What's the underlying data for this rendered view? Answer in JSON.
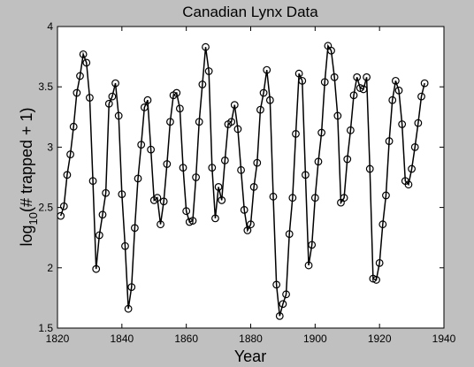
{
  "chart_data": {
    "type": "line",
    "title": "Canadian Lynx Data",
    "xlabel": "Year",
    "ylabel": {
      "prefix": "log",
      "subscript": "10",
      "suffix": "(# trapped + 1)"
    },
    "xlim": [
      1820,
      1940
    ],
    "ylim": [
      1.5,
      4
    ],
    "xticks": [
      "1820",
      "1840",
      "1860",
      "1880",
      "1900",
      "1920",
      "1940"
    ],
    "yticks": [
      "1.5",
      "2",
      "2.5",
      "3",
      "3.5",
      "4"
    ],
    "grid": false,
    "legend": "none",
    "marker": "circle",
    "colors": {
      "line": "#000000",
      "background": "#c0c0c0",
      "plot_area": "#ffffff"
    },
    "series": [
      {
        "x": [
          1821,
          1822,
          1823,
          1824,
          1825,
          1826,
          1827,
          1828,
          1829,
          1830,
          1831,
          1832,
          1833,
          1834,
          1835,
          1836,
          1837,
          1838,
          1839,
          1840,
          1841,
          1842,
          1843,
          1844,
          1845,
          1846,
          1847,
          1848,
          1849,
          1850,
          1851,
          1852,
          1853,
          1854,
          1855,
          1856,
          1857,
          1858,
          1859,
          1860,
          1861,
          1862,
          1863,
          1864,
          1865,
          1866,
          1867,
          1868,
          1869,
          1870,
          1871,
          1872,
          1873,
          1874,
          1875,
          1876,
          1877,
          1878,
          1879,
          1880,
          1881,
          1882,
          1883,
          1884,
          1885,
          1886,
          1887,
          1888,
          1889,
          1890,
          1891,
          1892,
          1893,
          1894,
          1895,
          1896,
          1897,
          1898,
          1899,
          1900,
          1901,
          1902,
          1903,
          1904,
          1905,
          1906,
          1907,
          1908,
          1909,
          1910,
          1911,
          1912,
          1913,
          1914,
          1915,
          1916,
          1917,
          1918,
          1919,
          1920,
          1921,
          1922,
          1923,
          1924,
          1925,
          1926,
          1927,
          1928,
          1929,
          1930,
          1931,
          1932,
          1933,
          1934
        ],
        "y": [
          2.43,
          2.51,
          2.77,
          2.94,
          3.17,
          3.45,
          3.59,
          3.77,
          3.7,
          3.41,
          2.72,
          1.99,
          2.27,
          2.44,
          2.62,
          3.36,
          3.42,
          3.53,
          3.26,
          2.61,
          2.18,
          1.66,
          1.84,
          2.33,
          2.74,
          3.02,
          3.33,
          3.39,
          2.98,
          2.56,
          2.58,
          2.36,
          2.55,
          2.86,
          3.21,
          3.43,
          3.45,
          3.32,
          2.83,
          2.47,
          2.38,
          2.39,
          2.75,
          3.21,
          3.52,
          3.83,
          3.63,
          2.83,
          2.41,
          2.67,
          2.56,
          2.89,
          3.19,
          3.21,
          3.35,
          3.15,
          2.81,
          2.48,
          2.31,
          2.36,
          2.67,
          2.87,
          3.31,
          3.45,
          3.64,
          3.39,
          2.59,
          1.86,
          1.6,
          1.7,
          1.78,
          2.28,
          2.58,
          3.11,
          3.61,
          3.55,
          2.77,
          2.02,
          2.19,
          2.58,
          2.88,
          3.12,
          3.54,
          3.84,
          3.8,
          3.58,
          3.26,
          2.54,
          2.58,
          2.9,
          3.14,
          3.43,
          3.58,
          3.49,
          3.48,
          3.58,
          2.82,
          1.91,
          1.9,
          2.04,
          2.36,
          2.6,
          3.05,
          3.39,
          3.55,
          3.47,
          3.19,
          2.72,
          2.69,
          2.82,
          3.0,
          3.2,
          3.42,
          3.53
        ]
      }
    ]
  }
}
